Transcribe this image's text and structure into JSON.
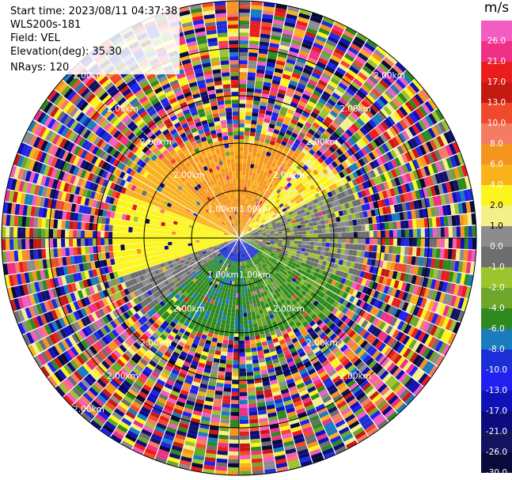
{
  "info": {
    "start_time": "Start time: 2023/08/11 04:37:38",
    "instrument": "WLS200s-181",
    "field": "Field: VEL",
    "elevation": "Elevation(deg): 35.30",
    "nrays": "NRays: 120"
  },
  "colorbar": {
    "unit": "m/s",
    "segments": [
      {
        "color": "#f35cc0",
        "label": "26.0"
      },
      {
        "color": "#ee3186",
        "label": "21.0"
      },
      {
        "color": "#ea1c1c",
        "label": "17.0"
      },
      {
        "color": "#c41a12",
        "label": "13.0"
      },
      {
        "color": "#ef4a2b",
        "label": "10.0"
      },
      {
        "color": "#f47c63",
        "label": "8.0"
      },
      {
        "color": "#f5941e",
        "label": "6.0"
      },
      {
        "color": "#f9b11c",
        "label": "4.0"
      },
      {
        "color": "#fbf51d",
        "label": "2.0"
      },
      {
        "color": "#f3f08a",
        "label": "1.0"
      },
      {
        "color": "#8c8c8c",
        "label": "0.0"
      },
      {
        "color": "#6e6e6e",
        "label": "-1.0"
      },
      {
        "color": "#9cc42e",
        "label": "-2.0"
      },
      {
        "color": "#6da628",
        "label": "-4.0"
      },
      {
        "color": "#2e8a1e",
        "label": "-6.0"
      },
      {
        "color": "#1a7bbd",
        "label": "-8.0"
      },
      {
        "color": "#1c2fd6",
        "label": "-10.0"
      },
      {
        "color": "#2020f0",
        "label": "-13.0"
      },
      {
        "color": "#1111b8",
        "label": "-17.0"
      },
      {
        "color": "#0c0c7e",
        "label": "-21.0"
      },
      {
        "color": "#131360",
        "label": "-26.0"
      },
      {
        "color": "#0a0a3a",
        "label": "-30.0"
      }
    ]
  },
  "range_rings": {
    "inner_label": "1.00km",
    "mid_label": "2.00km"
  },
  "chart_data": {
    "type": "heatmap",
    "projection": "polar PPI",
    "field": "VEL",
    "units": "m/s",
    "nrays": 120,
    "elevation_deg": 35.3,
    "range_rings_km": [
      1.0,
      2.0,
      3.0,
      4.0,
      5.0
    ],
    "colorbar_levels": [
      26.0,
      21.0,
      17.0,
      13.0,
      10.0,
      8.0,
      6.0,
      4.0,
      2.0,
      1.0,
      0.0,
      -1.0,
      -2.0,
      -4.0,
      -6.0,
      -8.0,
      -10.0,
      -13.0,
      -17.0,
      -21.0,
      -26.0,
      -30.0
    ],
    "near_field_pattern": {
      "north_sector": "positive 4 to 8 m/s (orange/salmon)",
      "west_sector": "positive 2 to 4 m/s (yellow)",
      "east_sector": "about 0 to -1 m/s (grey)",
      "south_sector": "negative -2 to -6 m/s (green)",
      "center_south": "about -8 m/s (blue)"
    },
    "far_field_pattern": "noisy, all colour levels"
  }
}
